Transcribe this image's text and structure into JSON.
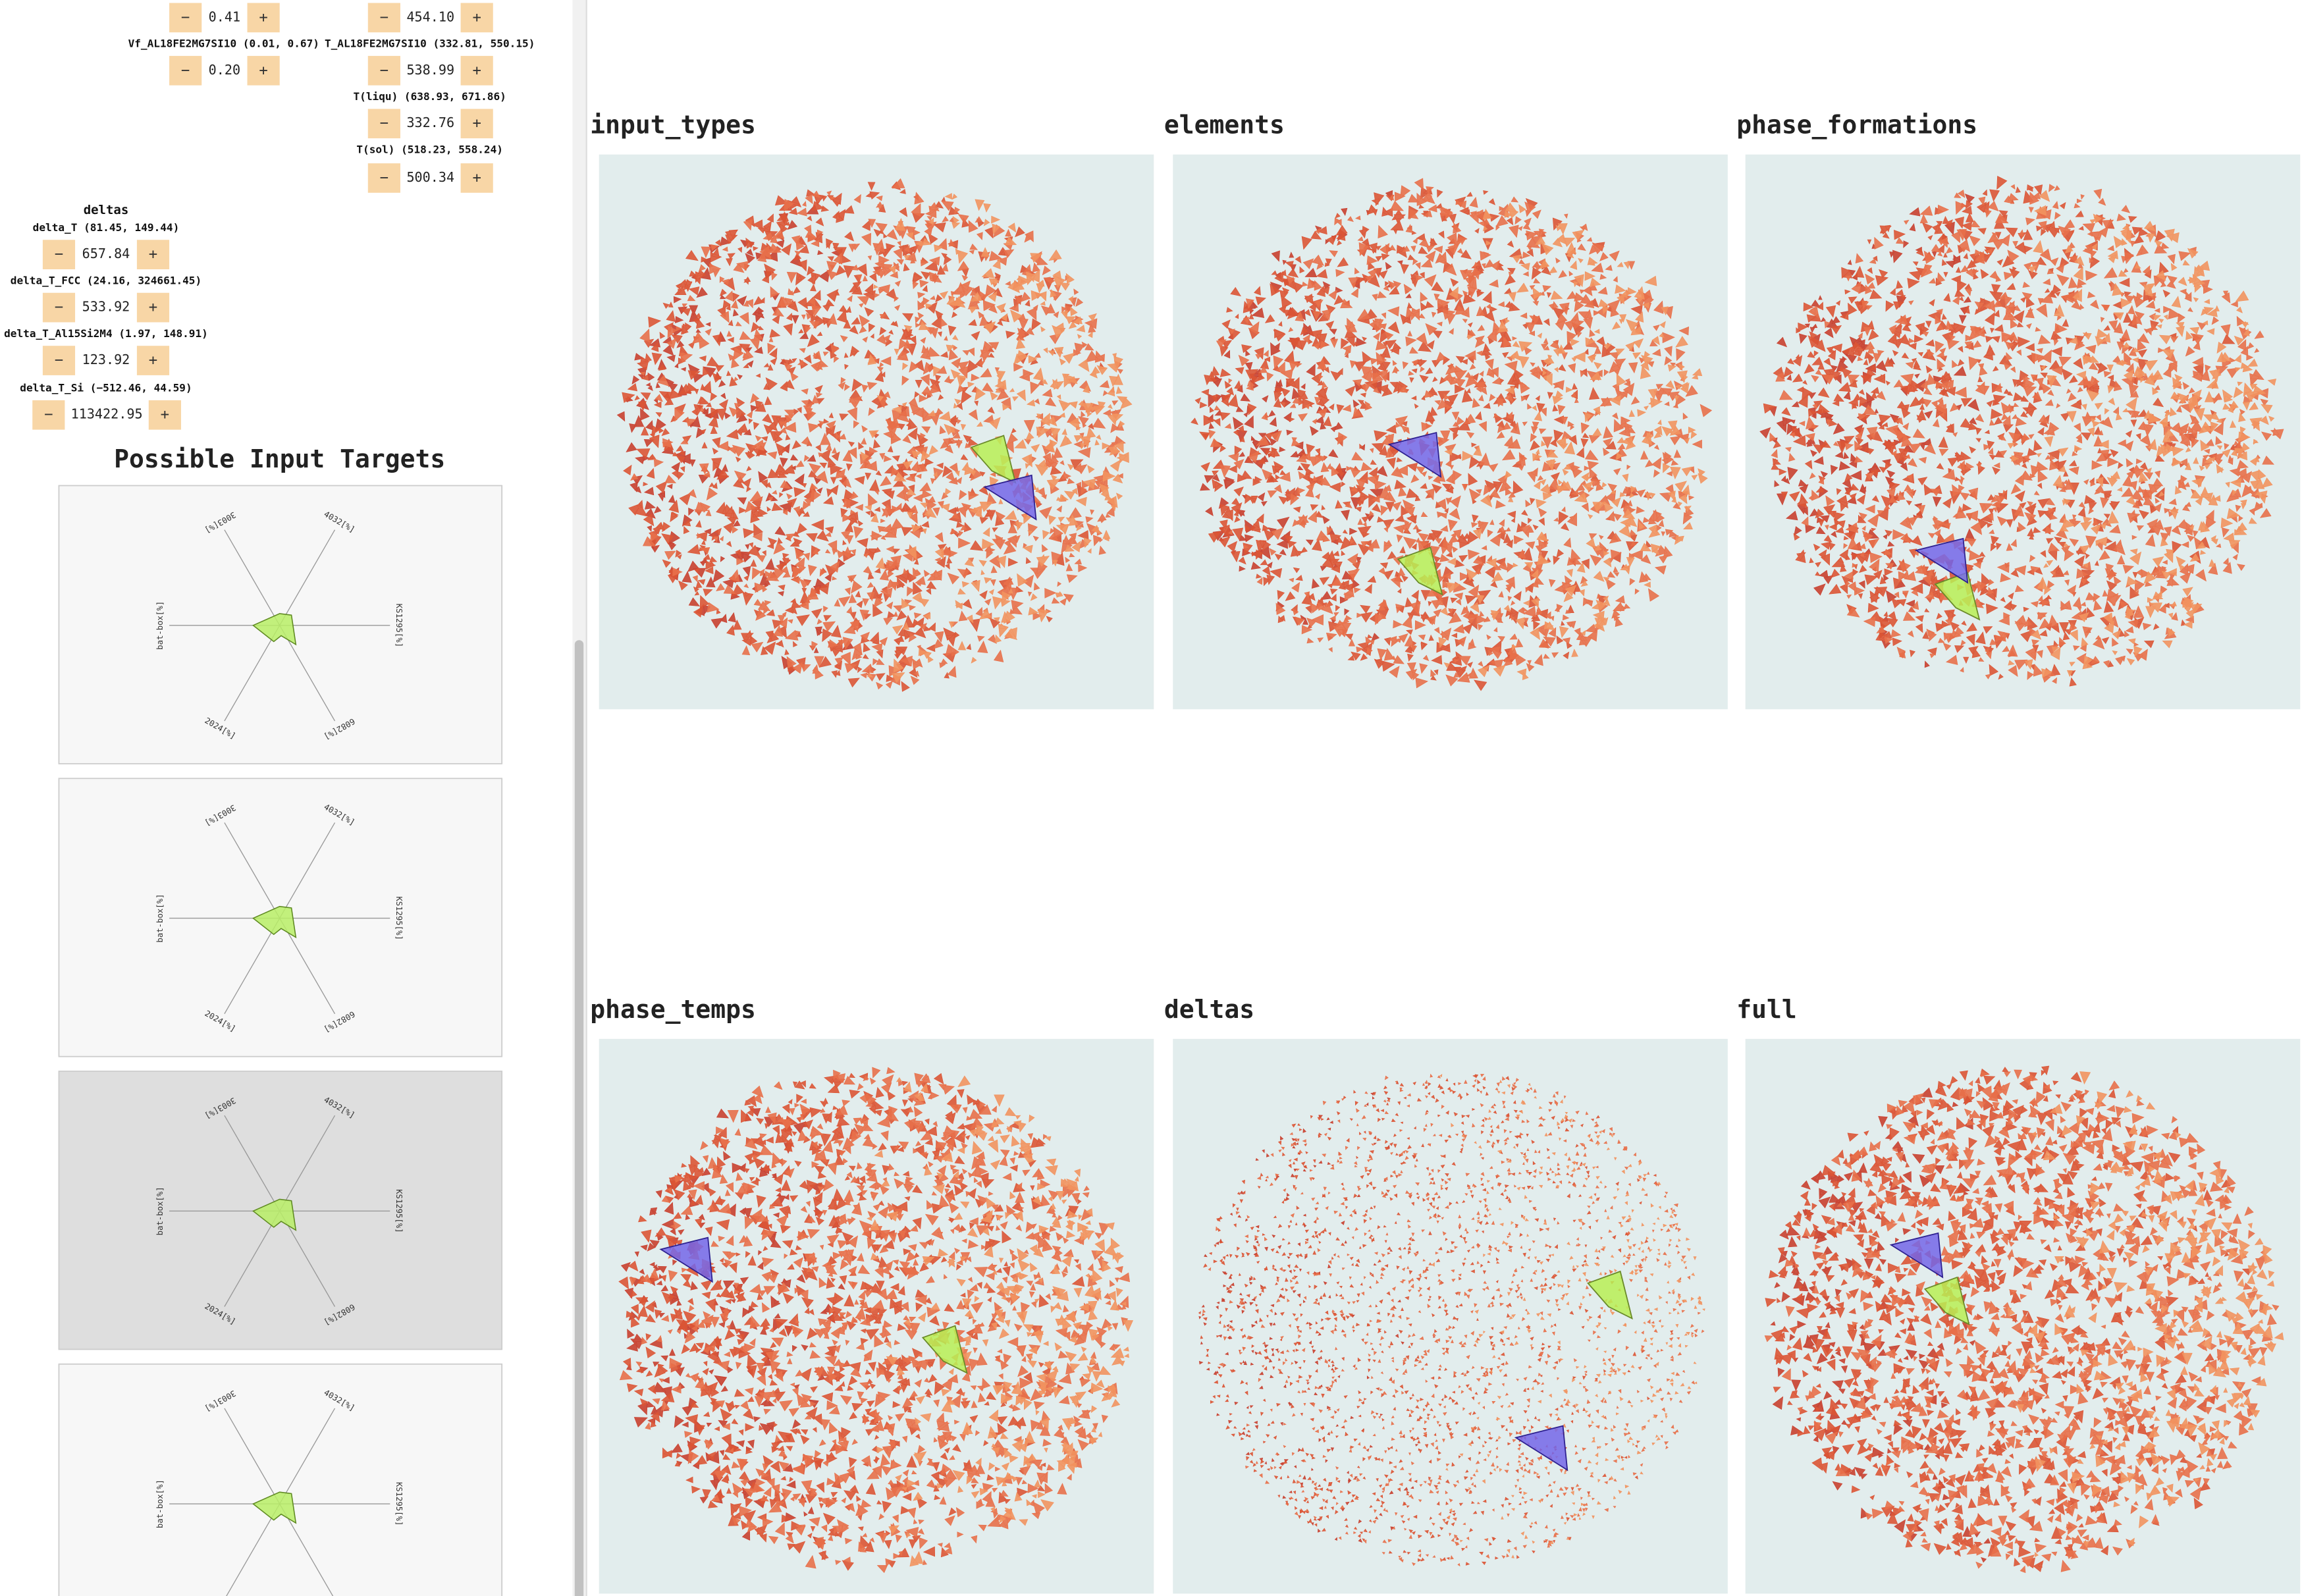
{
  "buttons": {
    "minus": "−",
    "plus": "+"
  },
  "controls": [
    {
      "value": "0.41"
    },
    {
      "label": "Vf_AL18FE2MG7SI10 (0.01, 0.67)",
      "value": "0.20"
    },
    {
      "value": "454.10"
    },
    {
      "label": "T_AL18FE2MG7SI10 (332.81, 550.15)",
      "value": "538.99"
    },
    {
      "label": "T(liqu) (638.93, 671.86)",
      "value": "332.76"
    },
    {
      "label": "T(sol) (518.23, 558.24)",
      "value": "500.34"
    }
  ],
  "deltas": {
    "title": "deltas",
    "controls": [
      {
        "label": "delta_T (81.45, 149.44)",
        "value": "657.84"
      },
      {
        "label": "delta_T_FCC (24.16, 324661.45)",
        "value": "533.92"
      },
      {
        "label": "delta_T_Al15Si2M4 (1.97, 148.91)",
        "value": "123.92"
      },
      {
        "label": "delta_T_Si (−512.46, 44.59)",
        "value": "113422.95"
      }
    ]
  },
  "targets": {
    "title": "Possible Input Targets",
    "axis_labels": [
      "3003[%]",
      "4032[%]",
      "KS1295[%]",
      "6082[%]",
      "2024[%]",
      "bat-box[%]"
    ]
  },
  "plots": [
    {
      "title": "input_types"
    },
    {
      "title": "elements"
    },
    {
      "title": "phase_formations"
    },
    {
      "title": "phase_temps"
    },
    {
      "title": "deltas"
    },
    {
      "title": "full"
    }
  ]
}
